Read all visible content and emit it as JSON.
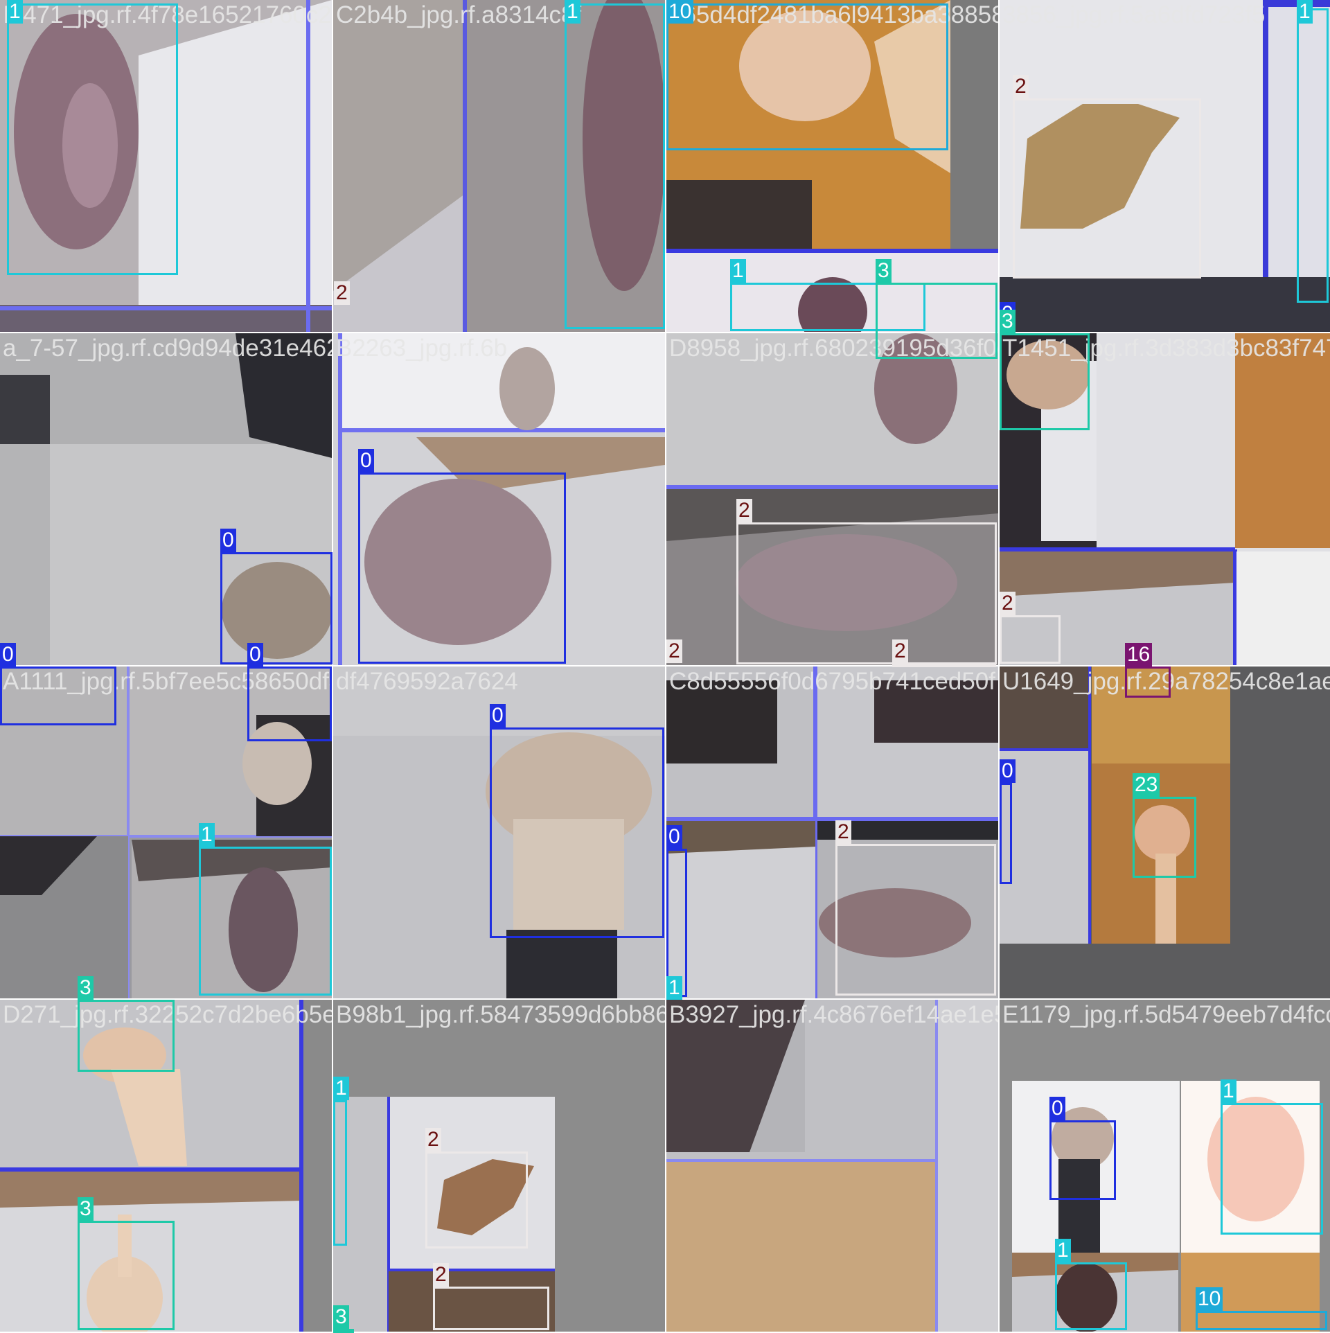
{
  "class_colors": {
    "0": "#1f2fe0",
    "1": "#1ec8d8",
    "2": "#ece8e8",
    "3": "#1ec9a8",
    "10": "#1eaad8",
    "16": "#7a1470",
    "23": "#1ec9a8"
  },
  "tiles": [
    {
      "filename": "I2471_jpg.rf.4f78e16521760c2541c6i2481d31d48f10175c"
    },
    {
      "filename": "C2b4b_jpg.rf.a8314c8f"
    },
    {
      "filename": "365d4df2481ba6l9413ba3885882"
    },
    {
      "filename": "3856_jpg.rf.5a6dfd723f5"
    },
    {
      "filename": "a_7-57_jpg.rf.cd9d94de31e462263aijdd60246679783"
    },
    {
      "filename": "B2263_jpg.rf.6b"
    },
    {
      "filename": "D8958_jpg.rf.680239195d36f0d"
    },
    {
      "filename": "T1451_jpg.rf.3d383d3bc83f747"
    },
    {
      "filename": "A1111_jpg.rf.5bf7ee5c58650df4769592a77247301d6ce26"
    },
    {
      "filename": "df4769592a7624"
    },
    {
      "filename": "C8d55556f0d6795b741ced50f"
    },
    {
      "filename": "U1649_jpg.rf.29a78254c8e1ae281"
    },
    {
      "filename": "D271_jpg.rf.32252c7d2be6b5e8b"
    },
    {
      "filename": "B98b1_jpg.rf.58473599d6bb86b"
    },
    {
      "filename": "B3927_jpg.rf.4c8676ef14ae1e5"
    },
    {
      "filename": "E1179_jpg.rf.5d5479eeb7d4fcc29e"
    }
  ],
  "detections": [
    {
      "tile": 0,
      "label": "1"
    },
    {
      "tile": 1,
      "label": "1"
    },
    {
      "tile": 1,
      "label": "2"
    },
    {
      "tile": 2,
      "label": "10"
    },
    {
      "tile": 2,
      "label": "1"
    },
    {
      "tile": 2,
      "label": "3"
    },
    {
      "tile": 3,
      "label": "2"
    },
    {
      "tile": 3,
      "label": "1"
    },
    {
      "tile": 3,
      "label": "0"
    },
    {
      "tile": 4,
      "label": "0"
    },
    {
      "tile": 4,
      "label": "0"
    },
    {
      "tile": 4,
      "label": "0"
    },
    {
      "tile": 5,
      "label": "0"
    },
    {
      "tile": 6,
      "label": "2"
    },
    {
      "tile": 6,
      "label": "2"
    },
    {
      "tile": 6,
      "label": "2"
    },
    {
      "tile": 7,
      "label": "3"
    },
    {
      "tile": 7,
      "label": "2"
    },
    {
      "tile": 8,
      "label": "1"
    },
    {
      "tile": 8,
      "label": "3"
    },
    {
      "tile": 9,
      "label": "0"
    },
    {
      "tile": 10,
      "label": "0"
    },
    {
      "tile": 10,
      "label": "2"
    },
    {
      "tile": 10,
      "label": "1"
    },
    {
      "tile": 11,
      "label": "16"
    },
    {
      "tile": 11,
      "label": "0"
    },
    {
      "tile": 11,
      "label": "23"
    },
    {
      "tile": 12,
      "label": "3"
    },
    {
      "tile": 13,
      "label": "1"
    },
    {
      "tile": 13,
      "label": "2"
    },
    {
      "tile": 13,
      "label": "2"
    },
    {
      "tile": 13,
      "label": "3"
    },
    {
      "tile": 15,
      "label": "0"
    },
    {
      "tile": 15,
      "label": "1"
    },
    {
      "tile": 15,
      "label": "1"
    },
    {
      "tile": 15,
      "label": "10"
    }
  ]
}
